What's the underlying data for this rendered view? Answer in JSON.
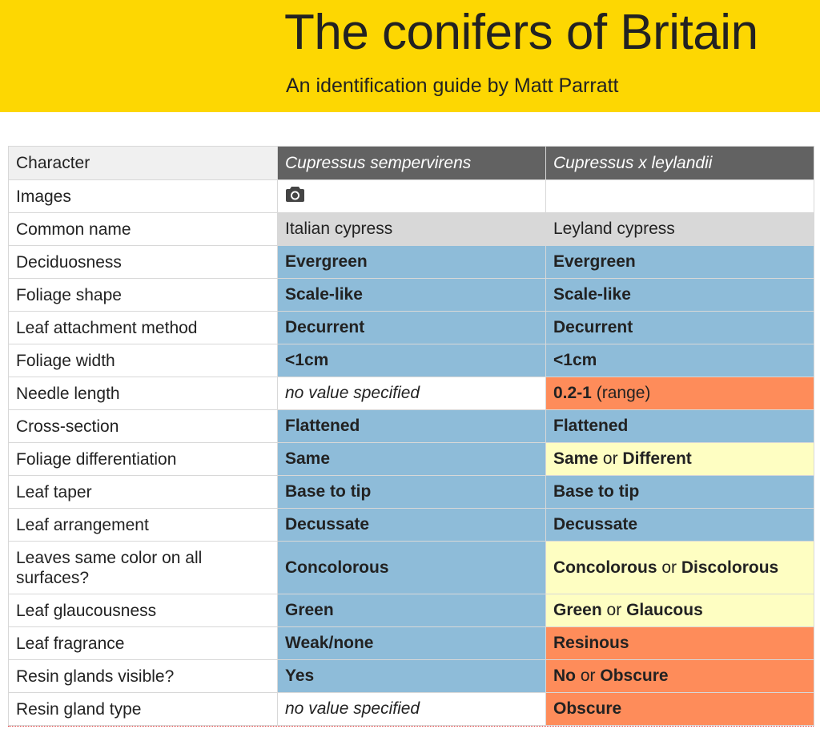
{
  "header": {
    "title": "The conifers of Britain",
    "subtitle": "An identification guide by Matt Parratt"
  },
  "table": {
    "headers": {
      "character": "Character",
      "species_a": "Cupressus sempervirens",
      "species_b": "Cupressus x leylandii"
    },
    "rows": {
      "images": {
        "label": "Images",
        "a_icon": "camera-icon"
      },
      "common_name": {
        "label": "Common name",
        "a": "Italian cypress",
        "b": "Leyland cypress"
      },
      "deciduousness": {
        "label": "Deciduosness",
        "a": "Evergreen",
        "b": "Evergreen"
      },
      "foliage_shape": {
        "label": "Foliage shape",
        "a": "Scale-like",
        "b": "Scale-like"
      },
      "leaf_attachment": {
        "label": "Leaf attachment method",
        "a": "Decurrent",
        "b": "Decurrent"
      },
      "foliage_width": {
        "label": "Foliage width",
        "a": "<1cm",
        "b": "<1cm"
      },
      "needle_length": {
        "label": "Needle length",
        "a": "no value specified",
        "b_value": "0.2-1",
        "b_note": "(range)"
      },
      "cross_section": {
        "label": "Cross-section",
        "a": "Flattened",
        "b": "Flattened"
      },
      "foliage_diff": {
        "label": "Foliage differentiation",
        "a": "Same",
        "b_1": "Same",
        "b_or": "or",
        "b_2": "Different"
      },
      "leaf_taper": {
        "label": "Leaf taper",
        "a": "Base to tip",
        "b": "Base to tip"
      },
      "leaf_arrangement": {
        "label": "Leaf arrangement",
        "a": "Decussate",
        "b": "Decussate"
      },
      "leaf_color": {
        "label": "Leaves same color on all surfaces?",
        "a": "Concolorous",
        "b_1": "Concolorous",
        "b_or": "or",
        "b_2": "Discolorous"
      },
      "leaf_glaucousness": {
        "label": "Leaf glaucousness",
        "a": "Green",
        "b_1": "Green",
        "b_or": "or",
        "b_2": "Glaucous"
      },
      "leaf_fragrance": {
        "label": "Leaf fragrance",
        "a": "Weak/none",
        "b": "Resinous"
      },
      "resin_glands_visible": {
        "label": "Resin glands visible?",
        "a": "Yes",
        "b_1": "No",
        "b_or": "or",
        "b_2": "Obscure"
      },
      "resin_gland_type": {
        "label": "Resin gland type",
        "a": "no value specified",
        "b": "Obscure"
      }
    }
  },
  "colors": {
    "header_bg": "#fdd702",
    "species_header_bg": "#626262",
    "match_blue": "#8ebcd9",
    "partial_yellow": "#fefec2",
    "mismatch_orange": "#fe8c5a",
    "neutral_gray": "#d8d8d8"
  }
}
